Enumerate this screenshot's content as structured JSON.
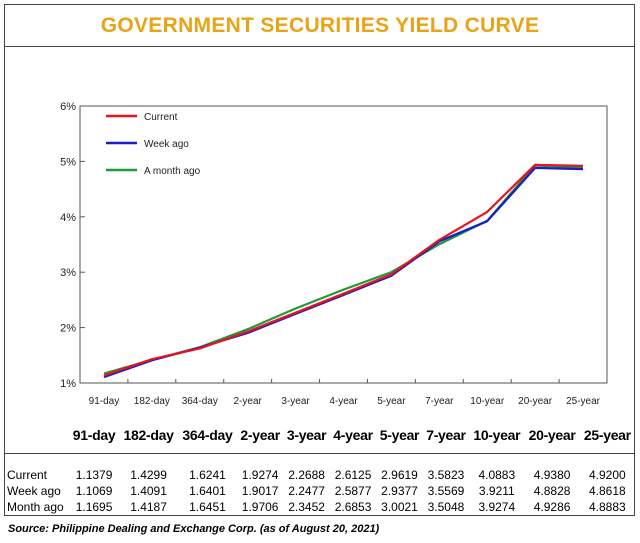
{
  "title": "GOVERNMENT SECURITIES YIELD CURVE",
  "source": "Source: Philippine Dealing and Exchange Corp. (as of August 20, 2021)",
  "colors": {
    "title": "#E8A317",
    "current": "#E8131B",
    "week_ago": "#1C1CC8",
    "month_ago": "#1E9A3A"
  },
  "chart_data": {
    "type": "line",
    "title": "GOVERNMENT SECURITIES YIELD CURVE",
    "xlabel": "",
    "ylabel": "",
    "categories": [
      "91-day",
      "182-day",
      "364-day",
      "2-year",
      "3-year",
      "4-year",
      "5-year",
      "7-year",
      "10-year",
      "20-year",
      "25-year"
    ],
    "yticks": [
      "1%",
      "2%",
      "3%",
      "4%",
      "5%",
      "6%"
    ],
    "ylim": [
      1,
      6
    ],
    "legend_position": "top-left",
    "grid": false,
    "series": [
      {
        "name": "Current",
        "color": "#E8131B",
        "values": [
          1.1379,
          1.4299,
          1.6241,
          1.9274,
          2.2688,
          2.6125,
          2.9619,
          3.5823,
          4.0883,
          4.938,
          4.92
        ]
      },
      {
        "name": "Week ago",
        "color": "#1C1CC8",
        "values": [
          1.1069,
          1.4091,
          1.6401,
          1.9017,
          2.2477,
          2.5877,
          2.9377,
          3.5569,
          3.9211,
          4.8828,
          4.8618
        ]
      },
      {
        "name": "A month ago",
        "color": "#1E9A3A",
        "values": [
          1.1695,
          1.4187,
          1.6451,
          1.9706,
          2.3452,
          2.6853,
          3.0021,
          3.5048,
          3.9274,
          4.9286,
          4.8883
        ]
      }
    ]
  },
  "table": {
    "headers": [
      "91-day",
      "182-day",
      "364-day",
      "2-year",
      "3-year",
      "4-year",
      "5-year",
      "7-year",
      "10-year",
      "20-year",
      "25-year"
    ],
    "rows": [
      {
        "label": "Current",
        "values": [
          "1.1379",
          "1.4299",
          "1.6241",
          "1.9274",
          "2.2688",
          "2.6125",
          "2.9619",
          "3.5823",
          "4.0883",
          "4.9380",
          "4.9200"
        ]
      },
      {
        "label": "Week ago",
        "values": [
          "1.1069",
          "1.4091",
          "1.6401",
          "1.9017",
          "2.2477",
          "2.5877",
          "2.9377",
          "3.5569",
          "3.9211",
          "4.8828",
          "4.8618"
        ]
      },
      {
        "label": "Month ago",
        "values": [
          "1.1695",
          "1.4187",
          "1.6451",
          "1.9706",
          "2.3452",
          "2.6853",
          "3.0021",
          "3.5048",
          "3.9274",
          "4.9286",
          "4.8883"
        ]
      }
    ]
  }
}
